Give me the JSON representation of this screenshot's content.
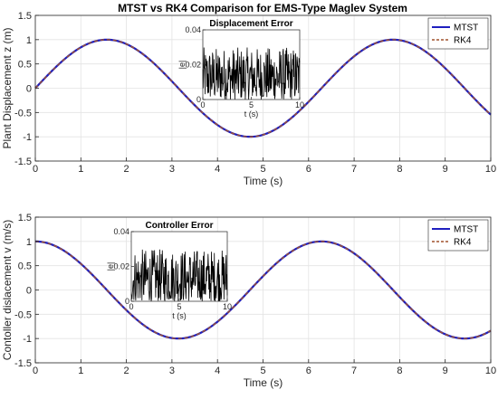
{
  "chart_data": [
    {
      "type": "line",
      "title": "MTST vs RK4 Comparison for EMS-Type Maglev System",
      "xlabel": "Time (s)",
      "ylabel": "Plant Displacement z (m)",
      "xlim": [
        0,
        10
      ],
      "ylim": [
        -1.5,
        1.5
      ],
      "xticks": [
        0,
        1,
        2,
        3,
        4,
        5,
        6,
        7,
        8,
        9,
        10
      ],
      "yticks": [
        -1.5,
        -1,
        -0.5,
        0,
        0.5,
        1,
        1.5
      ],
      "grid": true,
      "legend_position": "top-right",
      "series": [
        {
          "name": "MTST",
          "color": "#1f1fbf",
          "style": "solid",
          "function": "sin(t)"
        },
        {
          "name": "RK4",
          "color": "#a0522d",
          "style": "dashed",
          "function": "sin(t)"
        }
      ],
      "inset": {
        "title": "Displacement Error",
        "xlabel": "t (s)",
        "ylabel": "|e|",
        "xlim": [
          0,
          10
        ],
        "ylim": [
          0,
          0.04
        ],
        "xticks": [
          0,
          5,
          10
        ],
        "yticks": [
          0,
          0.02,
          0.04
        ],
        "color": "#000000",
        "approx_range": [
          0,
          0.03
        ]
      }
    },
    {
      "type": "line",
      "title": "",
      "xlabel": "Time (s)",
      "ylabel": "Contoller dislacement v (m/s)",
      "xlim": [
        0,
        10
      ],
      "ylim": [
        -1.5,
        1.5
      ],
      "xticks": [
        0,
        1,
        2,
        3,
        4,
        5,
        6,
        7,
        8,
        9,
        10
      ],
      "yticks": [
        -1.5,
        -1,
        -0.5,
        0,
        0.5,
        1,
        1.5
      ],
      "grid": true,
      "legend_position": "top-right",
      "series": [
        {
          "name": "MTST",
          "color": "#1f1fbf",
          "style": "solid",
          "function": "cos(t)"
        },
        {
          "name": "RK4",
          "color": "#a0522d",
          "style": "dashed",
          "function": "cos(t)"
        }
      ],
      "inset": {
        "title": "Controller Error",
        "xlabel": "t (s)",
        "ylabel": "|e|",
        "xlim": [
          0,
          10
        ],
        "ylim": [
          0,
          0.04
        ],
        "xticks": [
          0,
          5,
          10
        ],
        "yticks": [
          0,
          0.02,
          0.04
        ],
        "color": "#000000",
        "approx_range": [
          0,
          0.03
        ]
      }
    }
  ]
}
